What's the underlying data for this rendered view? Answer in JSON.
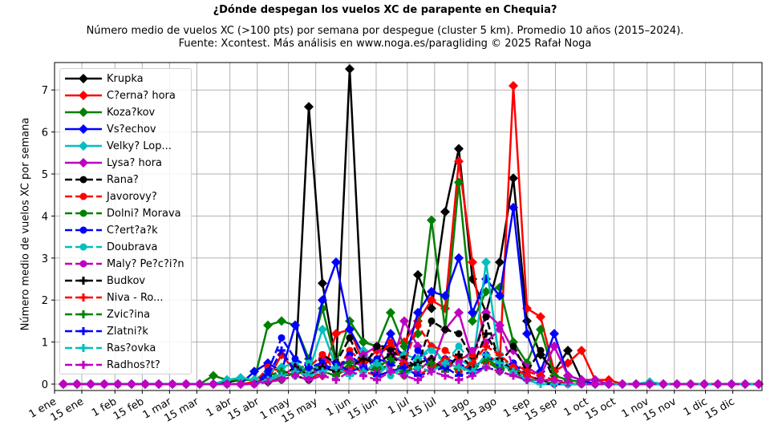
{
  "chart_data": {
    "type": "line",
    "title": "¿Dónde despegan los vuelos XC de parapente en Chequia?",
    "subtitle_line1": "Número medio de vuelos XC (>100 pts) por semana por despegue (cluster 5 km). Promedio 10 años (2015–2024).",
    "subtitle_line2": "Fuente: Xcontest. Más análisis en www.noga.es/paragliding © 2025 Rafał Noga",
    "xlabel": "",
    "ylabel": "Número medio de vuelos XC por semana",
    "ylim": [
      -0.15,
      7.65
    ],
    "yticks": [
      0,
      1,
      2,
      3,
      4,
      5,
      6,
      7
    ],
    "xtick_labels": [
      "1 ene",
      "15 ene",
      "1 feb",
      "15 feb",
      "1 mar",
      "15 mar",
      "1 abr",
      "15 abr",
      "1 may",
      "15 may",
      "1 jun",
      "15 jun",
      "1 jul",
      "15 jul",
      "1 ago",
      "15 ago",
      "1 sep",
      "15 sep",
      "1 oct",
      "15 oct",
      "1 nov",
      "15 nov",
      "1 dic",
      "15 dic"
    ],
    "xtick_days": [
      0,
      14,
      31,
      45,
      59,
      73,
      90,
      104,
      120,
      134,
      151,
      165,
      181,
      195,
      212,
      226,
      243,
      257,
      273,
      287,
      304,
      318,
      334,
      348
    ],
    "x_weeks": 52,
    "grid": true,
    "legend_position": "upper left",
    "series": [
      {
        "name": "Krupka",
        "color": "#000000",
        "style": "solid",
        "marker": "diamond",
        "values": [
          0,
          0,
          0,
          0,
          0,
          0,
          0,
          0,
          0,
          0,
          0,
          0,
          0.05,
          0.1,
          0.1,
          0.05,
          0.2,
          0.25,
          6.6,
          2.4,
          0.5,
          7.5,
          1.0,
          0.9,
          0.9,
          0.7,
          2.6,
          1.8,
          4.1,
          5.6,
          2.5,
          1.7,
          2.9,
          4.9,
          1.5,
          0.7,
          0.3,
          0.8,
          0.1,
          0,
          0,
          0,
          0,
          0,
          0,
          0,
          0,
          0,
          0,
          0,
          0,
          0
        ]
      },
      {
        "name": "C?erna? hora",
        "color": "#ff0000",
        "style": "solid",
        "marker": "diamond",
        "values": [
          0,
          0,
          0,
          0,
          0,
          0,
          0,
          0,
          0,
          0,
          0,
          0,
          0,
          0,
          0.05,
          0.1,
          0.7,
          0.3,
          0.3,
          0.2,
          1.2,
          1.3,
          0.5,
          0.8,
          0.9,
          1.0,
          1.5,
          2.0,
          1.8,
          5.3,
          2.9,
          0.7,
          0.5,
          7.1,
          1.8,
          1.6,
          0.3,
          0.5,
          0.8,
          0.1,
          0.1,
          0,
          0,
          0,
          0,
          0,
          0,
          0,
          0,
          0,
          0,
          0
        ]
      },
      {
        "name": "Koza?kov",
        "color": "#008000",
        "style": "solid",
        "marker": "diamond",
        "values": [
          0,
          0,
          0,
          0,
          0,
          0,
          0,
          0,
          0,
          0,
          0,
          0.2,
          0.1,
          0.1,
          0.1,
          1.4,
          1.5,
          1.4,
          0.6,
          1.8,
          0.5,
          1.5,
          1.0,
          0.9,
          1.7,
          0.9,
          1.2,
          3.9,
          1.3,
          4.8,
          1.5,
          2.2,
          2.3,
          1.0,
          0.5,
          1.3,
          0.2,
          0.1,
          0.05,
          0,
          0,
          0,
          0,
          0,
          0,
          0,
          0,
          0,
          0,
          0,
          0,
          0
        ]
      },
      {
        "name": "Vs?echov",
        "color": "#0000ff",
        "style": "solid",
        "marker": "diamond",
        "values": [
          0,
          0,
          0,
          0,
          0,
          0,
          0,
          0,
          0,
          0,
          0,
          0,
          0,
          0,
          0.3,
          0.5,
          0.3,
          1.4,
          0.5,
          2.0,
          2.9,
          1.3,
          0.7,
          0.5,
          1.2,
          0.5,
          1.7,
          2.2,
          2.1,
          3.0,
          1.7,
          2.5,
          2.1,
          4.2,
          1.2,
          0.3,
          1.2,
          0.2,
          0.1,
          0,
          0,
          0,
          0,
          0,
          0,
          0,
          0,
          0,
          0,
          0,
          0,
          0
        ]
      },
      {
        "name": "Velky? Lop...",
        "color": "#00bfbf",
        "style": "solid",
        "marker": "diamond",
        "values": [
          0,
          0,
          0,
          0,
          0,
          0,
          0,
          0,
          0,
          0,
          0,
          0,
          0.1,
          0.15,
          0.1,
          0.3,
          0.4,
          0.5,
          0.3,
          1.3,
          0.4,
          0.3,
          0.8,
          0.2,
          0.5,
          0.7,
          0.6,
          0.9,
          0.5,
          0.6,
          0.4,
          2.9,
          0.5,
          0.3,
          0.1,
          0.1,
          0,
          0,
          0,
          0,
          0,
          0,
          0,
          0.05,
          0,
          0,
          0,
          0,
          0,
          0,
          0,
          0
        ]
      },
      {
        "name": "Lysa? hora",
        "color": "#bf00bf",
        "style": "solid",
        "marker": "diamond",
        "values": [
          0,
          0,
          0,
          0,
          0,
          0,
          0,
          0,
          0,
          0,
          0,
          0,
          0,
          0,
          0,
          0.1,
          0.2,
          0.4,
          0.1,
          0.6,
          0.5,
          0.3,
          0.7,
          0.9,
          0.3,
          1.5,
          0.9,
          0.4,
          1.3,
          1.7,
          0.6,
          1.7,
          1.4,
          0.8,
          0.4,
          0.2,
          0.9,
          0.2,
          0.1,
          0.1,
          0,
          0,
          0,
          0,
          0,
          0,
          0,
          0,
          0,
          0,
          0,
          0
        ]
      },
      {
        "name": "Rana?",
        "color": "#000000",
        "style": "dashed",
        "marker": "circle",
        "values": [
          0,
          0,
          0,
          0,
          0,
          0,
          0,
          0,
          0,
          0,
          0,
          0,
          0,
          0,
          0,
          0.2,
          0.3,
          0.2,
          0.1,
          0.7,
          0.5,
          1.1,
          0.4,
          0.9,
          0.8,
          0.6,
          0.4,
          1.5,
          1.3,
          1.2,
          0.6,
          1.6,
          0.5,
          0.9,
          0.3,
          0.8,
          0.1,
          0,
          0,
          0,
          0,
          0,
          0,
          0,
          0,
          0,
          0,
          0,
          0,
          0,
          0,
          0
        ]
      },
      {
        "name": "Javorovy?",
        "color": "#ff0000",
        "style": "dashed",
        "marker": "circle",
        "values": [
          0,
          0,
          0,
          0,
          0,
          0,
          0,
          0,
          0,
          0,
          0,
          0,
          0,
          0,
          0,
          0.4,
          0.3,
          0.2,
          0.4,
          0.7,
          0.3,
          0.8,
          0.5,
          0.6,
          1.0,
          0.5,
          1.4,
          0.9,
          0.8,
          0.6,
          0.7,
          0.5,
          0.4,
          0.5,
          0.3,
          0.2,
          0.1,
          0,
          0,
          0,
          0,
          0,
          0,
          0,
          0,
          0,
          0,
          0,
          0,
          0,
          0,
          0
        ]
      },
      {
        "name": "Dolni? Morava",
        "color": "#008000",
        "style": "dashed",
        "marker": "circle",
        "values": [
          0,
          0,
          0,
          0,
          0,
          0,
          0,
          0,
          0,
          0,
          0,
          0,
          0,
          0,
          0,
          0.2,
          0.1,
          0.3,
          0.5,
          0.4,
          0.3,
          0.6,
          0.4,
          0.3,
          0.5,
          0.2,
          0.6,
          0.4,
          0.5,
          0.3,
          0.4,
          0.6,
          0.3,
          0.4,
          0.2,
          0.1,
          0,
          0,
          0,
          0,
          0,
          0,
          0,
          0,
          0,
          0,
          0,
          0,
          0,
          0,
          0,
          0
        ]
      },
      {
        "name": "C?ert?a?k",
        "color": "#0000ff",
        "style": "dashed",
        "marker": "circle",
        "values": [
          0,
          0,
          0,
          0,
          0,
          0,
          0,
          0,
          0,
          0,
          0,
          0,
          0,
          0,
          0,
          0.3,
          1.1,
          0.6,
          0.4,
          0.5,
          0.3,
          0.7,
          0.4,
          0.6,
          0.5,
          0.3,
          0.8,
          0.4,
          0.6,
          0.5,
          0.3,
          0.7,
          0.4,
          0.5,
          0.2,
          0.1,
          0,
          0,
          0,
          0,
          0,
          0,
          0,
          0,
          0,
          0,
          0,
          0,
          0,
          0,
          0,
          0
        ]
      },
      {
        "name": "Doubrava",
        "color": "#00bfbf",
        "style": "dashed",
        "marker": "circle",
        "values": [
          0,
          0,
          0,
          0,
          0,
          0,
          0,
          0,
          0,
          0,
          0,
          0,
          0,
          0,
          0,
          0.1,
          0.3,
          0.2,
          0.5,
          0.3,
          0.2,
          0.4,
          0.3,
          0.5,
          0.2,
          0.4,
          0.6,
          0.8,
          0.5,
          0.9,
          0.5,
          0.4,
          0.7,
          0.3,
          0.2,
          0.1,
          0,
          0,
          0,
          0,
          0,
          0,
          0,
          0,
          0,
          0,
          0,
          0,
          0,
          0,
          0,
          0
        ]
      },
      {
        "name": "Maly? Pe?c?i?n",
        "color": "#bf00bf",
        "style": "dashed",
        "marker": "circle",
        "values": [
          0,
          0,
          0,
          0,
          0,
          0,
          0,
          0,
          0,
          0,
          0,
          0,
          0,
          0,
          0,
          0.1,
          0.2,
          0.3,
          0.2,
          0.4,
          0.3,
          0.6,
          0.4,
          0.3,
          0.7,
          0.5,
          0.3,
          0.6,
          0.4,
          0.5,
          0.8,
          1.0,
          1.3,
          0.4,
          0.2,
          0.1,
          0,
          0,
          0,
          0,
          0,
          0,
          0,
          0,
          0,
          0,
          0,
          0,
          0,
          0,
          0,
          0
        ]
      },
      {
        "name": "Budkov",
        "color": "#000000",
        "style": "dashed",
        "marker": "plus",
        "values": [
          0,
          0,
          0,
          0,
          0,
          0,
          0,
          0,
          0,
          0,
          0,
          0,
          0,
          0,
          0,
          0.1,
          0.2,
          0.4,
          0.2,
          0.4,
          0.3,
          0.4,
          0.6,
          0.5,
          0.7,
          0.4,
          0.5,
          0.6,
          0.3,
          0.7,
          0.4,
          1.2,
          0.6,
          0.3,
          0.2,
          0.1,
          0,
          0,
          0,
          0,
          0,
          0,
          0,
          0,
          0,
          0,
          0,
          0,
          0,
          0,
          0,
          0
        ]
      },
      {
        "name": "Niva - Ro...",
        "color": "#ff0000",
        "style": "dashed",
        "marker": "plus",
        "values": [
          0,
          0,
          0,
          0,
          0,
          0,
          0,
          0,
          0,
          0,
          0,
          0,
          0,
          0,
          0,
          0.1,
          0.1,
          0.2,
          0.1,
          0.3,
          0.2,
          0.4,
          0.3,
          0.2,
          0.3,
          0.5,
          0.2,
          0.4,
          0.6,
          0.3,
          0.5,
          0.9,
          0.7,
          0.4,
          0.2,
          0.1,
          0,
          0,
          0,
          0,
          0,
          0,
          0,
          0,
          0,
          0,
          0,
          0,
          0,
          0,
          0,
          0
        ]
      },
      {
        "name": "Zvic?ina",
        "color": "#008000",
        "style": "dashed",
        "marker": "plus",
        "values": [
          0,
          0,
          0,
          0,
          0,
          0,
          0,
          0,
          0,
          0,
          0,
          0,
          0,
          0,
          0,
          0.2,
          0.3,
          0.2,
          0.4,
          0.3,
          0.2,
          0.5,
          0.3,
          0.4,
          0.6,
          0.3,
          0.4,
          0.5,
          0.3,
          0.4,
          0.3,
          0.6,
          0.4,
          0.3,
          0.1,
          0.1,
          0,
          0,
          0,
          0,
          0,
          0,
          0,
          0,
          0,
          0,
          0,
          0,
          0,
          0,
          0,
          0
        ]
      },
      {
        "name": "Zlatni?k",
        "color": "#0000ff",
        "style": "dashed",
        "marker": "plus",
        "values": [
          0,
          0,
          0,
          0,
          0,
          0,
          0,
          0,
          0,
          0,
          0,
          0,
          0,
          0,
          0,
          0.2,
          0.8,
          0.3,
          0.4,
          0.3,
          0.5,
          0.3,
          0.4,
          0.2,
          0.3,
          0.4,
          0.2,
          0.3,
          0.4,
          0.2,
          0.3,
          0.4,
          0.3,
          0.2,
          0.1,
          0,
          0,
          0,
          0,
          0,
          0,
          0,
          0,
          0,
          0,
          0,
          0,
          0,
          0,
          0,
          0,
          0
        ]
      },
      {
        "name": "Ras?ovka",
        "color": "#00bfbf",
        "style": "dashed",
        "marker": "plus",
        "values": [
          0,
          0,
          0,
          0,
          0,
          0,
          0,
          0,
          0,
          0,
          0,
          0,
          0,
          0,
          0,
          0.1,
          0.2,
          0.3,
          0.2,
          0.3,
          0.4,
          0.2,
          0.3,
          0.5,
          0.3,
          0.2,
          0.4,
          0.3,
          0.5,
          0.4,
          0.3,
          0.7,
          0.5,
          0.3,
          0.1,
          0,
          0,
          0,
          0,
          0,
          0,
          0,
          0,
          0,
          0,
          0,
          0,
          0,
          0,
          0,
          0,
          0
        ]
      },
      {
        "name": "Radhos?t?",
        "color": "#bf00bf",
        "style": "dashed",
        "marker": "plus",
        "values": [
          0,
          0,
          0,
          0,
          0,
          0,
          0,
          0,
          0,
          0,
          0,
          0,
          0,
          0,
          0,
          0.05,
          0.1,
          0.2,
          0.1,
          0.2,
          0.1,
          0.3,
          0.2,
          0.1,
          0.3,
          0.2,
          0.1,
          0.3,
          0.2,
          0.1,
          0.2,
          0.4,
          0.3,
          0.2,
          0.1,
          0.1,
          0.1,
          0.05,
          0,
          0,
          0,
          0,
          0,
          0,
          0,
          0,
          0,
          0,
          0,
          0,
          0,
          0
        ]
      }
    ]
  }
}
